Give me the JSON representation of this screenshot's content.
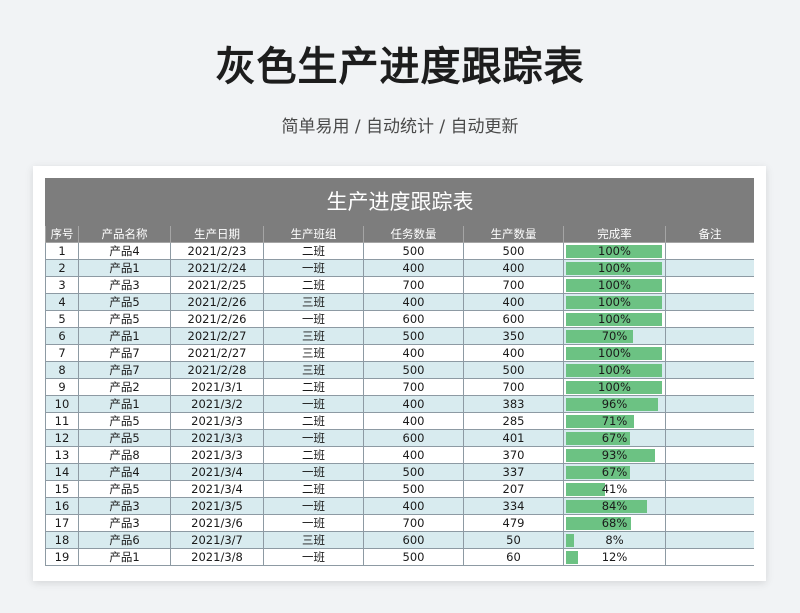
{
  "header": {
    "title": "灰色生产进度跟踪表",
    "subtitle": "简单易用 / 自动统计 / 自动更新"
  },
  "table": {
    "title": "生产进度跟踪表",
    "columns": [
      "序号",
      "产品名称",
      "生产日期",
      "生产班组",
      "任务数量",
      "生产数量",
      "完成率",
      "备注"
    ],
    "rows": [
      {
        "no": "1",
        "product": "产品4",
        "date": "2021/2/23",
        "team": "二班",
        "task": "500",
        "produced": "500",
        "rate_text": "100%",
        "rate": 1.0,
        "note": ""
      },
      {
        "no": "2",
        "product": "产品1",
        "date": "2021/2/24",
        "team": "一班",
        "task": "400",
        "produced": "400",
        "rate_text": "100%",
        "rate": 1.0,
        "note": ""
      },
      {
        "no": "3",
        "product": "产品3",
        "date": "2021/2/25",
        "team": "二班",
        "task": "700",
        "produced": "700",
        "rate_text": "100%",
        "rate": 1.0,
        "note": ""
      },
      {
        "no": "4",
        "product": "产品5",
        "date": "2021/2/26",
        "team": "三班",
        "task": "400",
        "produced": "400",
        "rate_text": "100%",
        "rate": 1.0,
        "note": ""
      },
      {
        "no": "5",
        "product": "产品5",
        "date": "2021/2/26",
        "team": "一班",
        "task": "600",
        "produced": "600",
        "rate_text": "100%",
        "rate": 1.0,
        "note": ""
      },
      {
        "no": "6",
        "product": "产品1",
        "date": "2021/2/27",
        "team": "三班",
        "task": "500",
        "produced": "350",
        "rate_text": "70%",
        "rate": 0.7,
        "note": ""
      },
      {
        "no": "7",
        "product": "产品7",
        "date": "2021/2/27",
        "team": "三班",
        "task": "400",
        "produced": "400",
        "rate_text": "100%",
        "rate": 1.0,
        "note": ""
      },
      {
        "no": "8",
        "product": "产品7",
        "date": "2021/2/28",
        "team": "三班",
        "task": "500",
        "produced": "500",
        "rate_text": "100%",
        "rate": 1.0,
        "note": ""
      },
      {
        "no": "9",
        "product": "产品2",
        "date": "2021/3/1",
        "team": "二班",
        "task": "700",
        "produced": "700",
        "rate_text": "100%",
        "rate": 1.0,
        "note": ""
      },
      {
        "no": "10",
        "product": "产品1",
        "date": "2021/3/2",
        "team": "一班",
        "task": "400",
        "produced": "383",
        "rate_text": "96%",
        "rate": 0.96,
        "note": ""
      },
      {
        "no": "11",
        "product": "产品5",
        "date": "2021/3/3",
        "team": "二班",
        "task": "400",
        "produced": "285",
        "rate_text": "71%",
        "rate": 0.71,
        "note": ""
      },
      {
        "no": "12",
        "product": "产品5",
        "date": "2021/3/3",
        "team": "一班",
        "task": "600",
        "produced": "401",
        "rate_text": "67%",
        "rate": 0.67,
        "note": ""
      },
      {
        "no": "13",
        "product": "产品8",
        "date": "2021/3/3",
        "team": "二班",
        "task": "400",
        "produced": "370",
        "rate_text": "93%",
        "rate": 0.93,
        "note": ""
      },
      {
        "no": "14",
        "product": "产品4",
        "date": "2021/3/4",
        "team": "一班",
        "task": "500",
        "produced": "337",
        "rate_text": "67%",
        "rate": 0.67,
        "note": ""
      },
      {
        "no": "15",
        "product": "产品5",
        "date": "2021/3/4",
        "team": "二班",
        "task": "500",
        "produced": "207",
        "rate_text": "41%",
        "rate": 0.41,
        "note": ""
      },
      {
        "no": "16",
        "product": "产品3",
        "date": "2021/3/5",
        "team": "一班",
        "task": "400",
        "produced": "334",
        "rate_text": "84%",
        "rate": 0.84,
        "note": ""
      },
      {
        "no": "17",
        "product": "产品3",
        "date": "2021/3/6",
        "team": "一班",
        "task": "700",
        "produced": "479",
        "rate_text": "68%",
        "rate": 0.68,
        "note": ""
      },
      {
        "no": "18",
        "product": "产品6",
        "date": "2021/3/7",
        "team": "三班",
        "task": "600",
        "produced": "50",
        "rate_text": "8%",
        "rate": 0.08,
        "note": ""
      },
      {
        "no": "19",
        "product": "产品1",
        "date": "2021/3/8",
        "team": "一班",
        "task": "500",
        "produced": "60",
        "rate_text": "12%",
        "rate": 0.12,
        "note": ""
      }
    ]
  },
  "colors": {
    "header_bg": "#7d7d7d",
    "stripe": "#d8ebef",
    "bar": "#6cc283"
  }
}
